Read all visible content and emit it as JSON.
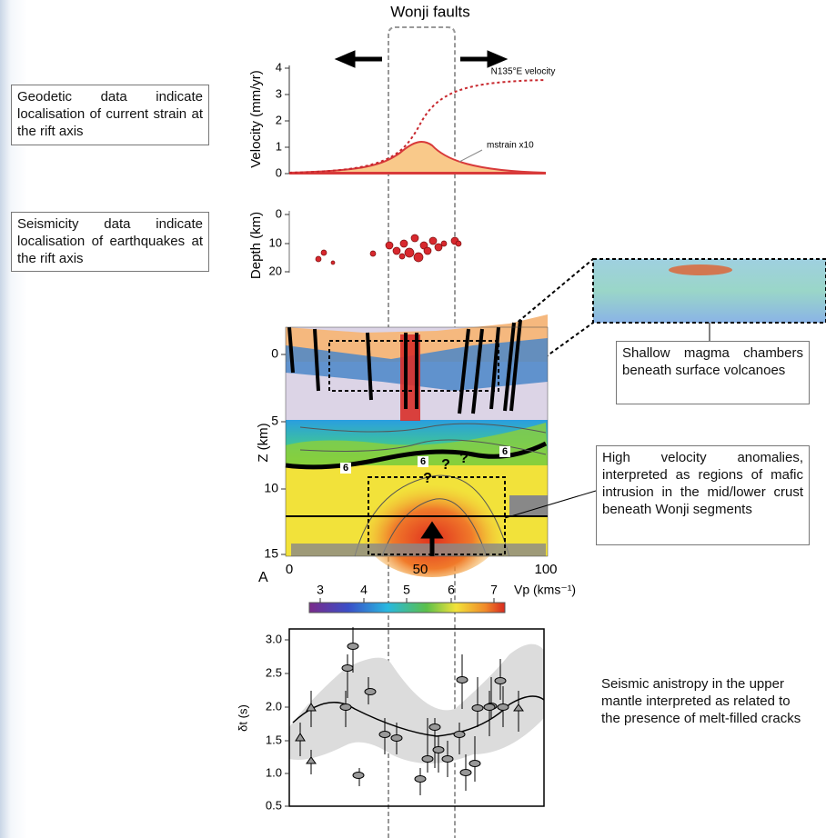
{
  "title": "Wonji faults",
  "annotations": [
    "Geodetic data indicate localisation of current strain at the rift axis",
    "Seismicity data indicate localisation of earthquakes at the rift axis",
    "Shallow magma chambers beneath surface volcanoes",
    "High velocity anomalies, interpreted as regions of mafic intrusion in the mid/lower crust beneath Wonji segments",
    "Seismic anistropy in the upper mantle interpreted as related to the presence of melt-filled cracks"
  ],
  "velocity_panel": {
    "y_label": "Velocity (mm/yr)",
    "y_ticks": [
      "0",
      "1",
      "2",
      "3",
      "4"
    ],
    "curve_label": "N135°E velocity",
    "strain_label": "mstrain x10"
  },
  "seismicity_panel": {
    "y_label": "Depth (km)",
    "y_ticks": [
      "0",
      "10",
      "20"
    ]
  },
  "tomography_panel": {
    "y_label": "Z (km)",
    "y_ticks": [
      "0",
      "5",
      "10",
      "15"
    ],
    "x_ticks": [
      "0",
      "50",
      "100"
    ],
    "panel_letter": "A",
    "contour_labels": [
      "6",
      "6",
      "6"
    ],
    "question_marks": [
      "?",
      "?",
      "?"
    ],
    "colorbar_ticks": [
      "3",
      "4",
      "5",
      "6",
      "7"
    ],
    "colorbar_label": "Vp (kms⁻¹)"
  },
  "anisotropy_panel": {
    "y_label": "δt (s)",
    "y_ticks": [
      "3.0",
      "2.5",
      "2.0",
      "1.5",
      "1.0",
      "0.5"
    ]
  }
}
